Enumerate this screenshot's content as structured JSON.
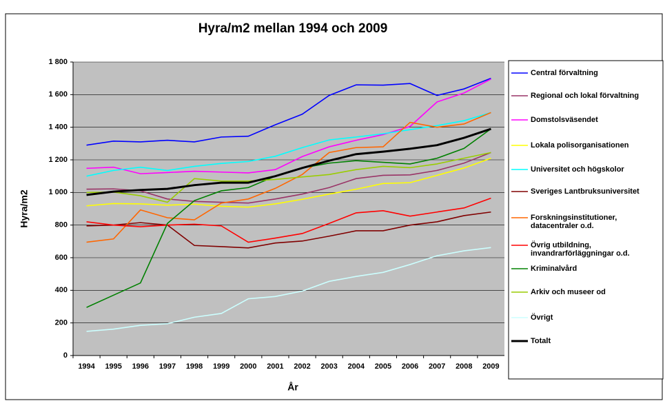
{
  "chart_data": {
    "type": "line",
    "title": "Hyra/m2 mellan 1994 och 2009",
    "x_label": "År",
    "y_label": "Hyra/m2",
    "categories": [
      "1994",
      "1995",
      "1996",
      "1997",
      "1998",
      "1999",
      "2000",
      "2001",
      "2002",
      "2003",
      "2004",
      "2005",
      "2006",
      "2007",
      "2008",
      "2009"
    ],
    "ylim": [
      0,
      1800
    ],
    "yticks": [
      0,
      200,
      400,
      600,
      800,
      {
        "value": 1000,
        "label": "1 000"
      },
      {
        "value": 1200,
        "label": "1 200"
      },
      {
        "value": 1400,
        "label": "1 400"
      },
      {
        "value": 1600,
        "label": "1 600"
      },
      {
        "value": 1800,
        "label": "1 800"
      }
    ],
    "grid": true,
    "legend": "right",
    "series": [
      {
        "name": "Central förvaltning",
        "color": "#0000ff",
        "values": [
          1290,
          1315,
          1310,
          1320,
          1310,
          1340,
          1345,
          1415,
          1480,
          1595,
          1660,
          1658,
          1668,
          1595,
          1635,
          1700
        ]
      },
      {
        "name": "Regional och lokal förvaltning",
        "color": "#993366",
        "values": [
          1020,
          1022,
          1010,
          960,
          945,
          940,
          935,
          960,
          990,
          1030,
          1085,
          1105,
          1108,
          1135,
          1180,
          1245
        ]
      },
      {
        "name": "Domstolsväsendet",
        "color": "#ff00ff",
        "values": [
          1148,
          1155,
          1115,
          1122,
          1130,
          1125,
          1120,
          1140,
          1220,
          1280,
          1320,
          1355,
          1405,
          1555,
          1610,
          1695
        ]
      },
      {
        "name": "Lokala polisorganisationen",
        "color": "#ffff00",
        "values": [
          918,
          932,
          930,
          922,
          928,
          915,
          910,
          930,
          958,
          990,
          1020,
          1055,
          1060,
          1105,
          1150,
          1210
        ]
      },
      {
        "name": "Universitet och högskolor",
        "color": "#00ffff",
        "values": [
          1100,
          1135,
          1155,
          1135,
          1160,
          1178,
          1190,
          1222,
          1275,
          1322,
          1340,
          1360,
          1385,
          1410,
          1440,
          1490
        ]
      },
      {
        "name": "Sveriges Lantbruksuniversitet",
        "color": "#800000",
        "values": [
          795,
          800,
          815,
          800,
          675,
          668,
          660,
          690,
          702,
          732,
          765,
          765,
          800,
          820,
          858,
          880
        ]
      },
      {
        "name": "Forskningsinstitutioner, datacentraler o.d.",
        "color": "#ff6600",
        "values": [
          695,
          715,
          893,
          845,
          832,
          935,
          960,
          1025,
          1110,
          1245,
          1275,
          1280,
          1430,
          1400,
          1420,
          1490
        ]
      },
      {
        "name": "Övrig utbildning, invandrarförläggningar o.d.",
        "color": "#ff0000",
        "values": [
          820,
          800,
          790,
          800,
          805,
          795,
          695,
          720,
          748,
          810,
          875,
          888,
          855,
          880,
          905,
          965
        ]
      },
      {
        "name": "Kriminalvård",
        "color": "#008000",
        "values": [
          295,
          370,
          445,
          810,
          950,
          1010,
          1030,
          1100,
          1150,
          1180,
          1195,
          1185,
          1175,
          1210,
          1270,
          1390
        ]
      },
      {
        "name": "Arkiv och museer od",
        "color": "#99cc00",
        "values": [
          1000,
          1002,
          980,
          940,
          1085,
          1070,
          1070,
          1080,
          1095,
          1110,
          1140,
          1160,
          1152,
          1175,
          1210,
          1245
        ]
      },
      {
        "name": "Övrigt",
        "color": "#ccffff",
        "values": [
          148,
          162,
          185,
          195,
          235,
          258,
          348,
          362,
          395,
          455,
          485,
          510,
          558,
          612,
          642,
          662
        ]
      },
      {
        "name": "Totalt",
        "color": "#000000",
        "values": [
          985,
          1005,
          1015,
          1022,
          1045,
          1060,
          1060,
          1100,
          1150,
          1195,
          1235,
          1250,
          1268,
          1290,
          1335,
          1390
        ]
      }
    ]
  }
}
